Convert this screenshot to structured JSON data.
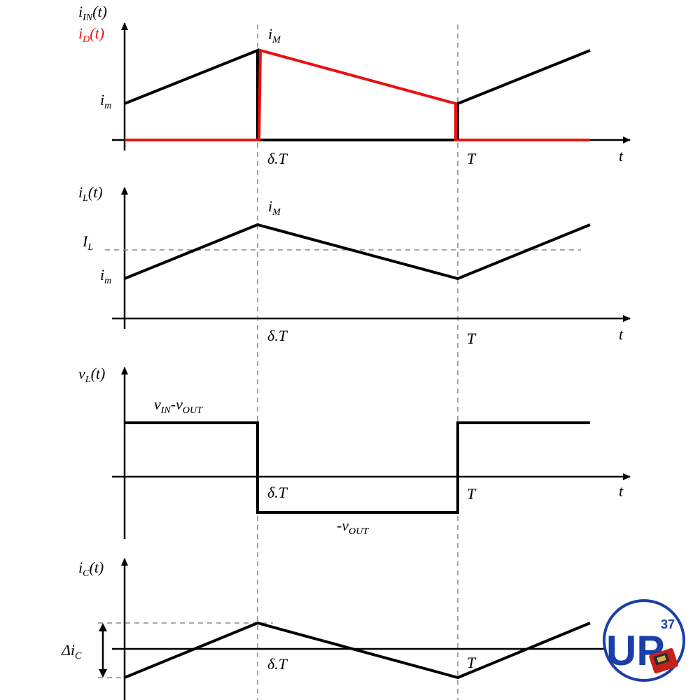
{
  "panel1": {
    "y_label_main": "i",
    "y_label_main_sub": "IN",
    "y_label_main_tail": "(t)",
    "y_label_red": "i",
    "y_label_red_sub": "D",
    "y_label_red_tail": "(t)",
    "peak_label": "i",
    "peak_label_sub": "M",
    "min_label": "i",
    "min_label_sub": "m",
    "t1_label": "δ.T",
    "t2_label": "T",
    "x_label": "t"
  },
  "panel2": {
    "y_label": "i",
    "y_label_sub": "L",
    "y_label_tail": "(t)",
    "peak_label": "i",
    "peak_label_sub": "M",
    "avg_label": "I",
    "avg_label_sub": "L",
    "min_label": "i",
    "min_label_sub": "m",
    "t1_label": "δ.T",
    "t2_label": "T",
    "x_label": "t"
  },
  "panel3": {
    "y_label": "v",
    "y_label_sub": "L",
    "y_label_tail": "(t)",
    "high_a": "v",
    "high_a_sub": "IN",
    "high_dash": "-",
    "high_b": "v",
    "high_b_sub": "OUT",
    "low_prefix": "-v",
    "low_sub": "OUT",
    "t1_label": "δ.T",
    "t2_label": "T",
    "x_label": "t"
  },
  "panel4": {
    "y_label": "i",
    "y_label_sub": "C",
    "y_label_tail": "(t)",
    "ripple_label": "Δi",
    "ripple_label_sub": "C",
    "t1_label": "δ.T",
    "t2_label": "T"
  },
  "logo": {
    "letters": "UP",
    "number": "37",
    "colors": {
      "ring": "#1b3fa8",
      "fill": "#1b3fa8",
      "board": "#c8201a"
    }
  },
  "colors": {
    "waveform": "#000000",
    "diode_current": "#e81010",
    "guides": "#8a8a8a"
  }
}
